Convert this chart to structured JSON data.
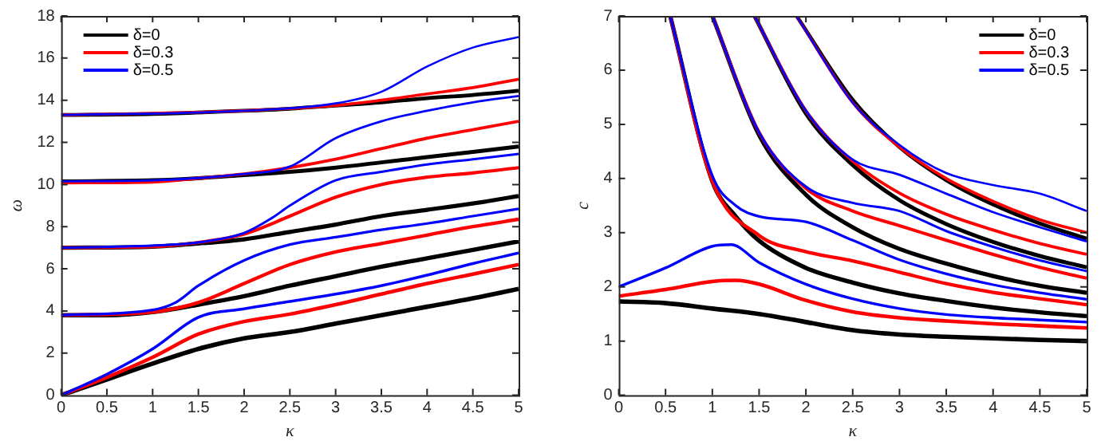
{
  "chart_data": [
    {
      "type": "line",
      "xlabel": "κ",
      "ylabel": "ω",
      "xlim": [
        0,
        5
      ],
      "ylim": [
        0,
        18
      ],
      "xticks": [
        0,
        0.5,
        1,
        1.5,
        2,
        2.5,
        3,
        3.5,
        4,
        4.5,
        5
      ],
      "yticks": [
        0,
        2,
        4,
        6,
        8,
        10,
        12,
        14,
        16,
        18
      ],
      "legend": "top left",
      "grid": false,
      "marker": "none",
      "line_style": "solid",
      "series": [
        {
          "name": "δ=0",
          "color": "#000000",
          "x": [
            0,
            0.5,
            1,
            1.5,
            2,
            2.5,
            3,
            3.5,
            4,
            4.5,
            5
          ],
          "values": [
            0,
            0.75,
            1.5,
            2.2,
            2.7,
            3.0,
            3.4,
            3.8,
            4.2,
            4.6,
            5.05
          ]
        },
        {
          "color": "#000000",
          "x": [
            0,
            0.5,
            1,
            1.5,
            2,
            2.5,
            3,
            3.5,
            4,
            4.5,
            5
          ],
          "values": [
            3.8,
            3.8,
            3.95,
            4.3,
            4.7,
            5.2,
            5.65,
            6.1,
            6.5,
            6.9,
            7.3
          ]
        },
        {
          "color": "#000000",
          "x": [
            0,
            1,
            1.5,
            2,
            2.5,
            3,
            3.5,
            4,
            4.5,
            5
          ],
          "values": [
            7.0,
            7.05,
            7.2,
            7.4,
            7.75,
            8.1,
            8.5,
            8.8,
            9.1,
            9.45
          ]
        },
        {
          "color": "#000000",
          "x": [
            0,
            1,
            1.5,
            2,
            2.5,
            3,
            3.5,
            4,
            4.5,
            5
          ],
          "values": [
            10.15,
            10.2,
            10.3,
            10.45,
            10.6,
            10.8,
            11.05,
            11.3,
            11.55,
            11.8
          ]
        },
        {
          "color": "#000000",
          "x": [
            0,
            1,
            2,
            2.5,
            3,
            3.5,
            4,
            4.5,
            5
          ],
          "values": [
            13.3,
            13.35,
            13.5,
            13.6,
            13.75,
            13.9,
            14.1,
            14.25,
            14.45
          ]
        },
        {
          "name": "δ=0.3",
          "color": "#ff0000",
          "x": [
            0,
            0.5,
            1,
            1.5,
            2,
            2.5,
            3,
            3.5,
            4,
            4.5,
            5
          ],
          "values": [
            0,
            0.85,
            1.8,
            2.9,
            3.5,
            3.85,
            4.3,
            4.8,
            5.3,
            5.75,
            6.2
          ]
        },
        {
          "color": "#ff0000",
          "x": [
            0,
            1,
            1.5,
            2,
            2.5,
            3,
            3.5,
            4,
            4.5,
            5
          ],
          "values": [
            3.8,
            3.95,
            4.4,
            5.3,
            6.2,
            6.8,
            7.2,
            7.6,
            8.0,
            8.35
          ]
        },
        {
          "color": "#ff0000",
          "x": [
            0,
            1,
            1.5,
            2,
            2.5,
            3,
            3.5,
            4,
            4.5,
            5
          ],
          "values": [
            7.0,
            7.05,
            7.25,
            7.65,
            8.5,
            9.4,
            10.0,
            10.35,
            10.55,
            10.8
          ]
        },
        {
          "color": "#ff0000",
          "x": [
            0,
            1,
            1.5,
            2,
            2.5,
            3,
            3.5,
            4,
            4.5,
            5
          ],
          "values": [
            10.08,
            10.12,
            10.3,
            10.5,
            10.8,
            11.2,
            11.7,
            12.2,
            12.6,
            13.0
          ]
        },
        {
          "color": "#ff0000",
          "x": [
            0,
            2,
            3,
            3.5,
            4,
            4.5,
            5
          ],
          "values": [
            13.3,
            13.5,
            13.75,
            14.0,
            14.3,
            14.6,
            15.0
          ]
        },
        {
          "name": "δ=0.5",
          "color": "#0000ff",
          "x": [
            0,
            0.5,
            1,
            1.5,
            2,
            2.5,
            3,
            3.5,
            4,
            4.5,
            5
          ],
          "values": [
            0,
            1.0,
            2.2,
            3.7,
            4.1,
            4.45,
            4.8,
            5.2,
            5.7,
            6.25,
            6.75
          ]
        },
        {
          "color": "#0000ff",
          "x": [
            0,
            1,
            1.25,
            1.5,
            2,
            2.5,
            3,
            3.5,
            4,
            4.5,
            5
          ],
          "values": [
            3.8,
            4.05,
            4.4,
            5.2,
            6.4,
            7.15,
            7.5,
            7.85,
            8.15,
            8.5,
            8.85
          ]
        },
        {
          "color": "#0000ff",
          "x": [
            0,
            1,
            1.5,
            2,
            2.3,
            2.5,
            3,
            3.5,
            4,
            4.5,
            5
          ],
          "values": [
            7.0,
            7.1,
            7.25,
            7.7,
            8.4,
            9.0,
            10.2,
            10.6,
            10.95,
            11.2,
            11.45
          ]
        },
        {
          "color": "#0000ff",
          "x": [
            0,
            1,
            2,
            2.5,
            3,
            3.5,
            4,
            4.5,
            5
          ],
          "values": [
            10.15,
            10.2,
            10.5,
            10.85,
            12.2,
            13.0,
            13.5,
            13.9,
            14.2
          ]
        },
        {
          "color": "#0000ff",
          "x": [
            0,
            2,
            3,
            3.5,
            4,
            4.5,
            5
          ],
          "values": [
            13.3,
            13.5,
            13.85,
            14.4,
            15.6,
            16.5,
            17.0
          ]
        }
      ]
    },
    {
      "type": "line",
      "xlabel": "κ",
      "ylabel": "c",
      "xlim": [
        0,
        5
      ],
      "ylim": [
        0,
        7
      ],
      "xticks": [
        0,
        0.5,
        1,
        1.5,
        2,
        2.5,
        3,
        3.5,
        4,
        4.5,
        5
      ],
      "yticks": [
        0,
        1,
        2,
        3,
        4,
        5,
        6,
        7
      ],
      "legend": "top right",
      "grid": false,
      "marker": "none",
      "line_style": "solid",
      "series": [
        {
          "name": "δ=0",
          "color": "#000000",
          "x": [
            0,
            0.5,
            1,
            1.5,
            2,
            2.5,
            3,
            3.5,
            4,
            4.5,
            5
          ],
          "values": [
            1.73,
            1.7,
            1.6,
            1.5,
            1.35,
            1.2,
            1.12,
            1.08,
            1.05,
            1.02,
            1.0
          ]
        },
        {
          "color": "#000000",
          "x": [
            0.55,
            1,
            1.25,
            1.5,
            2,
            2.5,
            3,
            3.5,
            4,
            4.5,
            5
          ],
          "values": [
            7,
            3.95,
            3.3,
            2.85,
            2.35,
            2.08,
            1.88,
            1.74,
            1.62,
            1.53,
            1.46
          ]
        },
        {
          "color": "#000000",
          "x": [
            1,
            1.5,
            2,
            2.5,
            3,
            3.5,
            4,
            4.5,
            5
          ],
          "values": [
            7,
            4.8,
            3.7,
            3.1,
            2.7,
            2.43,
            2.2,
            2.02,
            1.89
          ]
        },
        {
          "color": "#000000",
          "x": [
            1.45,
            2,
            2.5,
            3,
            3.5,
            4,
            4.5,
            5
          ],
          "values": [
            7,
            5.2,
            4.25,
            3.6,
            3.16,
            2.83,
            2.57,
            2.36
          ]
        },
        {
          "color": "#000000",
          "x": [
            1.9,
            2.5,
            3,
            3.5,
            4,
            4.5,
            5
          ],
          "values": [
            7,
            5.45,
            4.58,
            3.97,
            3.52,
            3.17,
            2.89
          ]
        },
        {
          "name": "δ=0.3",
          "color": "#ff0000",
          "x": [
            0,
            0.5,
            1,
            1.25,
            1.5,
            2,
            2.5,
            3,
            3.5,
            4,
            4.5,
            5
          ],
          "values": [
            1.83,
            1.95,
            2.1,
            2.12,
            2.05,
            1.75,
            1.54,
            1.43,
            1.37,
            1.32,
            1.28,
            1.24
          ]
        },
        {
          "color": "#ff0000",
          "x": [
            0.55,
            1,
            1.5,
            2,
            2.5,
            3,
            3.5,
            4,
            4.5,
            5
          ],
          "values": [
            7,
            3.95,
            2.95,
            2.65,
            2.48,
            2.27,
            2.06,
            1.9,
            1.78,
            1.67
          ]
        },
        {
          "color": "#ff0000",
          "x": [
            1,
            1.5,
            2,
            2.5,
            3,
            3.5,
            4,
            4.5,
            5
          ],
          "values": [
            7,
            4.85,
            3.82,
            3.4,
            3.13,
            2.86,
            2.6,
            2.36,
            2.16
          ]
        },
        {
          "color": "#ff0000",
          "x": [
            1.45,
            2,
            2.5,
            3,
            3.5,
            4,
            4.5,
            5
          ],
          "values": [
            7,
            5.25,
            4.32,
            3.73,
            3.34,
            3.05,
            2.8,
            2.6
          ]
        },
        {
          "color": "#ff0000",
          "x": [
            1.9,
            2.5,
            3,
            3.5,
            4,
            4.5,
            5
          ],
          "values": [
            7,
            5.4,
            4.58,
            4.0,
            3.58,
            3.24,
            3.0
          ]
        },
        {
          "name": "δ=0.5",
          "color": "#0000ff",
          "x": [
            0,
            0.5,
            1,
            1.2,
            1.5,
            2,
            2.5,
            3,
            3.5,
            4,
            4.5,
            5
          ],
          "values": [
            2.0,
            2.35,
            2.75,
            2.78,
            2.45,
            2.05,
            1.78,
            1.6,
            1.49,
            1.43,
            1.39,
            1.35
          ]
        },
        {
          "color": "#0000ff",
          "x": [
            0.55,
            1,
            1.25,
            1.5,
            2,
            2.5,
            3,
            3.5,
            4,
            4.5,
            5
          ],
          "values": [
            7,
            4.05,
            3.5,
            3.3,
            3.2,
            2.86,
            2.5,
            2.24,
            2.04,
            1.89,
            1.77
          ]
        },
        {
          "color": "#0000ff",
          "x": [
            1,
            1.5,
            2,
            2.5,
            3,
            3.5,
            4,
            4.5,
            5
          ],
          "values": [
            7,
            4.85,
            3.85,
            3.55,
            3.4,
            3.03,
            2.74,
            2.49,
            2.29
          ]
        },
        {
          "color": "#0000ff",
          "x": [
            1.45,
            2,
            2.5,
            3,
            3.5,
            4,
            4.5,
            5
          ],
          "values": [
            7,
            5.25,
            4.35,
            4.07,
            3.72,
            3.38,
            3.1,
            2.84
          ]
        },
        {
          "color": "#0000ff",
          "x": [
            1.9,
            2.5,
            3,
            3.5,
            4,
            4.5,
            5
          ],
          "values": [
            7,
            5.4,
            4.62,
            4.1,
            3.88,
            3.72,
            3.4
          ]
        }
      ]
    }
  ]
}
